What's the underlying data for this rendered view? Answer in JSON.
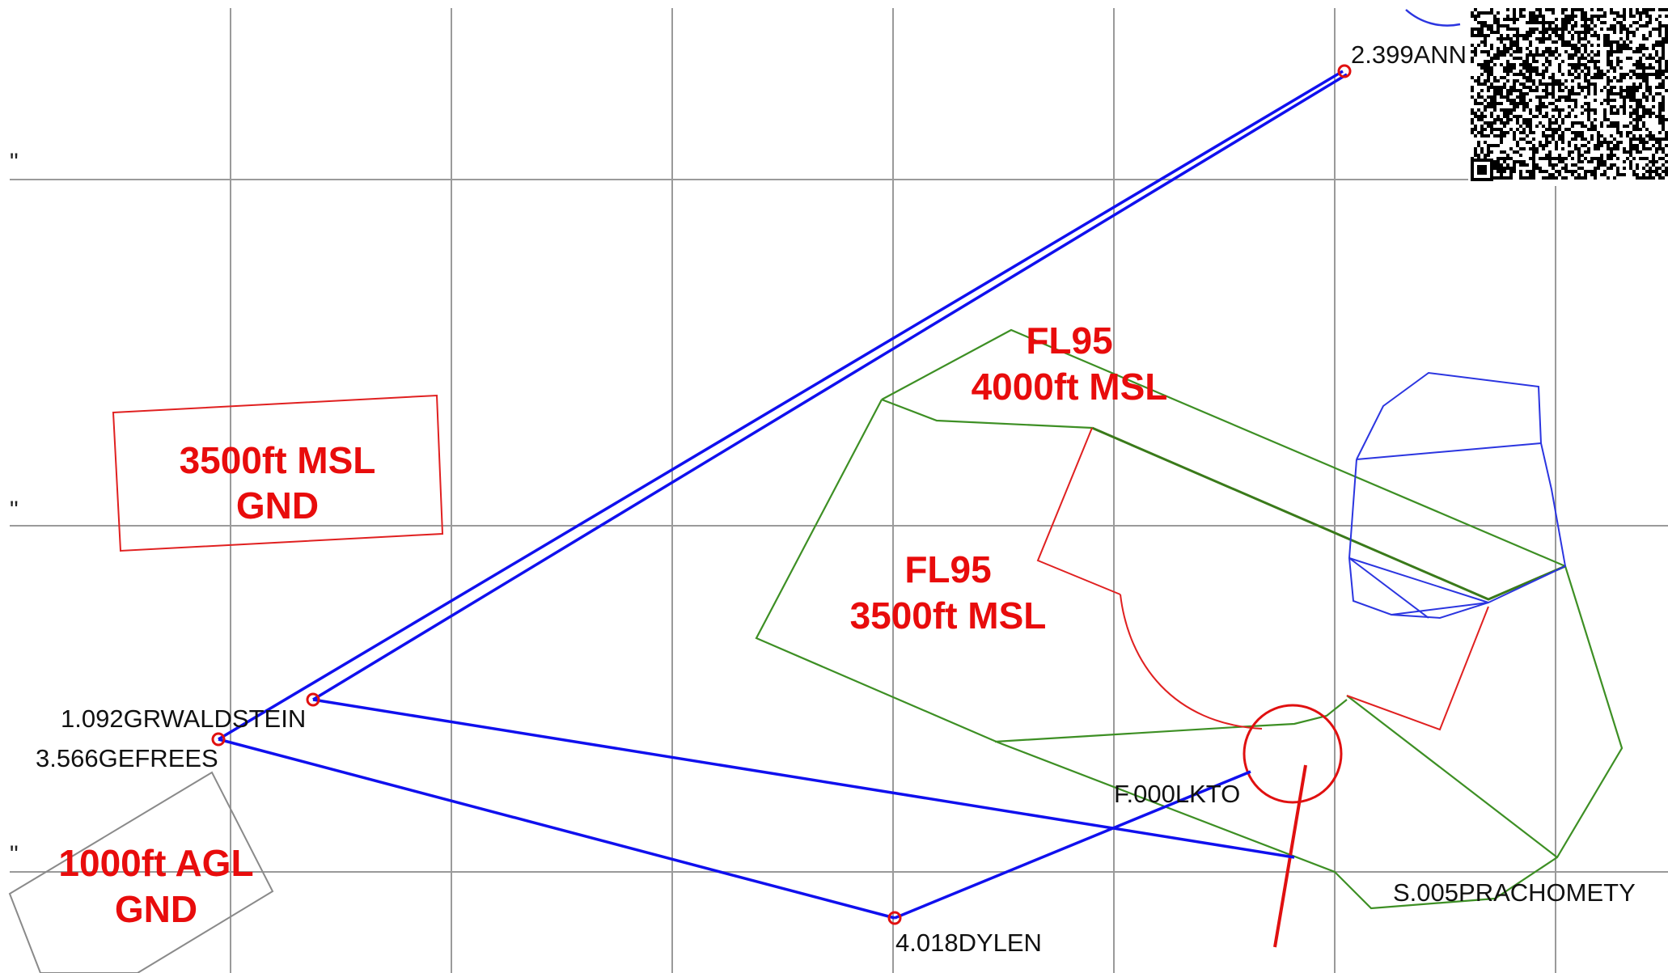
{
  "map": {
    "waypoints": [
      {
        "id": "annaberg",
        "label": "2.399ANN"
      },
      {
        "id": "grwaldstein",
        "label": "1.092GRWALDSTEIN"
      },
      {
        "id": "gefrees",
        "label": "3.566GEFREES"
      },
      {
        "id": "dylen",
        "label": "4.018DYLEN"
      },
      {
        "id": "lkto",
        "label": "F.000LKTO"
      },
      {
        "id": "prachomety",
        "label": "S.005PRACHOMETY"
      }
    ],
    "airspace_labels": {
      "zone_left_top": "3500ft MSL",
      "zone_left_bottom": "GND",
      "zone_upper_top": "FL95",
      "zone_upper_bottom": "4000ft MSL",
      "zone_center_top": "FL95",
      "zone_center_bottom": "3500ft MSL",
      "zone_agl_top": "1000ft AGL",
      "zone_agl_bottom": "GND"
    },
    "grid_ticks": [
      "\"",
      "\"",
      "\""
    ],
    "colors": {
      "route": "#1010ee",
      "waypoint": "#e01010",
      "airspace_label": "#e80c0c",
      "airspace_green": "#3d8f24",
      "airspace_red": "#e02020",
      "airspace_blue": "#2b35e0",
      "grid": "#9a9a9a"
    },
    "qr_code": "qr-code-icon"
  }
}
